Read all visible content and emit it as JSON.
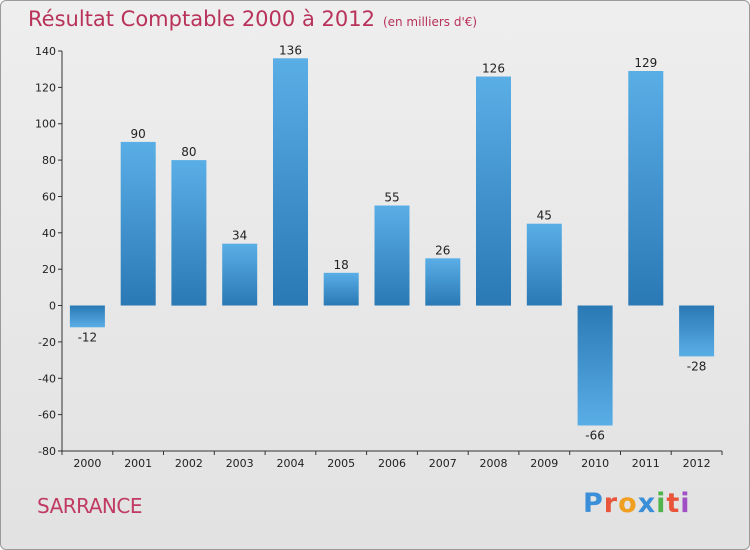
{
  "chart_data": {
    "type": "bar",
    "title": "Résultat Comptable 2000 à 2012",
    "subtitle": "(en milliers d'€)",
    "categories": [
      "2000",
      "2001",
      "2002",
      "2003",
      "2004",
      "2005",
      "2006",
      "2007",
      "2008",
      "2009",
      "2010",
      "2011",
      "2012"
    ],
    "values": [
      -12,
      90,
      80,
      34,
      136,
      18,
      55,
      26,
      126,
      45,
      -66,
      129,
      -28
    ],
    "value_labels": [
      "-12",
      "90",
      "80",
      "34",
      "136",
      "18",
      "55",
      "26",
      "126",
      "45",
      "-66",
      "129",
      "-28"
    ],
    "ylim": [
      -80,
      140
    ],
    "yticks": [
      -80,
      -60,
      -40,
      -20,
      0,
      20,
      40,
      60,
      80,
      100,
      120,
      140
    ],
    "xlabel": "",
    "ylabel": "",
    "grid": false,
    "colors": {
      "bar_light": "#5aaee6",
      "bar_dark": "#2a79b5",
      "title": "#b8325a"
    }
  },
  "footer": {
    "commune": "SARRANCE",
    "logo_text": "Proxiti",
    "logo_letters": [
      {
        "ch": "P",
        "color": "#3a8fd8"
      },
      {
        "ch": "r",
        "color": "#e8553a"
      },
      {
        "ch": "o",
        "color": "#f0a020"
      },
      {
        "ch": "x",
        "color": "#3a8fd8"
      },
      {
        "ch": "i",
        "color": "#4fb44a"
      },
      {
        "ch": "t",
        "color": "#e8553a"
      },
      {
        "ch": "i",
        "color": "#a04fc4"
      }
    ]
  }
}
